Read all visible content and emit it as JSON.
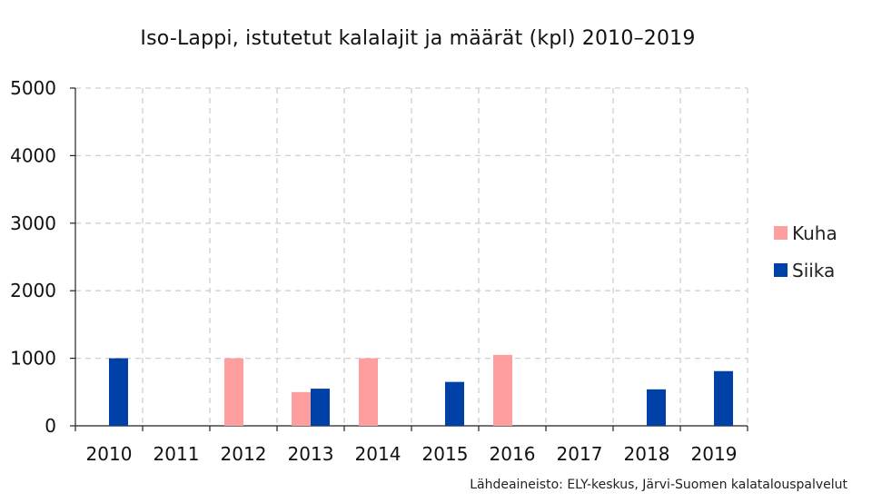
{
  "chart_data": {
    "type": "bar",
    "title": "Iso-Lappi, istutetut kalalajit ja määrät (kpl) 2010–2019",
    "xlabel": "",
    "ylabel": "",
    "categories": [
      "2010",
      "2011",
      "2012",
      "2013",
      "2014",
      "2015",
      "2016",
      "2017",
      "2018",
      "2019"
    ],
    "series": [
      {
        "name": "Kuha",
        "color": "#ff9e9e",
        "values": [
          0,
          0,
          1000,
          500,
          1000,
          0,
          1050,
          0,
          0,
          0
        ]
      },
      {
        "name": "Siika",
        "color": "#0041a8",
        "values": [
          1000,
          0,
          0,
          550,
          0,
          650,
          0,
          0,
          540,
          810
        ]
      }
    ],
    "ylim": [
      0,
      5000
    ],
    "yticks": [
      "0",
      "1000",
      "2000",
      "3000",
      "4000",
      "5000"
    ],
    "grid": true,
    "legend_position": "right"
  },
  "source_note": "Lähdeaineisto: ELY-keskus, Järvi-Suomen kalatalouspalvelut"
}
